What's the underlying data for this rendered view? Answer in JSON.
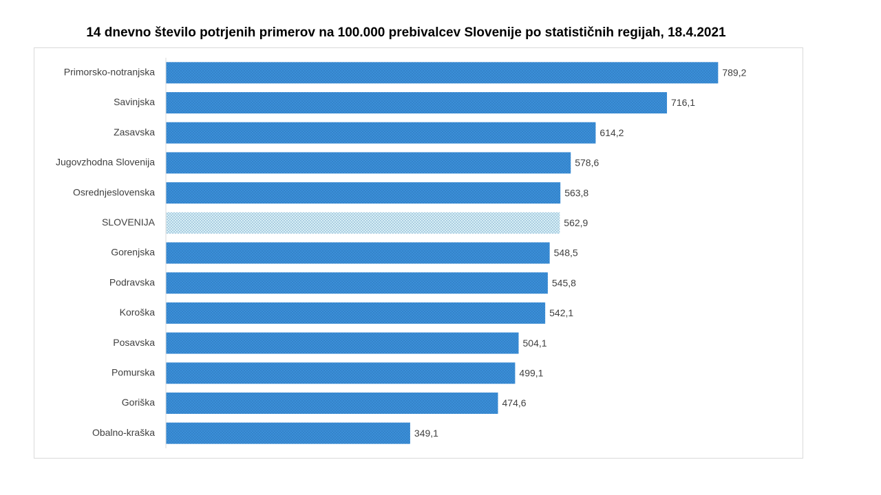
{
  "chart_data": {
    "type": "bar",
    "orientation": "horizontal",
    "title": "14 dnevno število potrjenih primerov na 100.000 prebivalcev Slovenije po statističnih regijah, 18.4.2021",
    "categories": [
      "Primorsko-notranjska",
      "Savinjska",
      "Zasavska",
      "Jugovzhodna Slovenija",
      "Osrednjeslovenska",
      "SLOVENIJA",
      "Gorenjska",
      "Podravska",
      "Koroška",
      "Posavska",
      "Pomurska",
      "Goriška",
      "Obalno-kraška"
    ],
    "values": [
      789.2,
      716.1,
      614.2,
      578.6,
      563.8,
      562.9,
      548.5,
      545.8,
      542.1,
      504.1,
      499.1,
      474.6,
      349.1
    ],
    "value_labels": [
      "789,2",
      "716,1",
      "614,2",
      "578,6",
      "563,8",
      "562,9",
      "548,5",
      "545,8",
      "542,1",
      "504,1",
      "499,1",
      "474,6",
      "349,1"
    ],
    "colors": [
      "#3b8fd8",
      "#3b8fd8",
      "#3b8fd8",
      "#3b8fd8",
      "#3b8fd8",
      "#d8f0f6",
      "#3b8fd8",
      "#3b8fd8",
      "#3b8fd8",
      "#3b8fd8",
      "#3b8fd8",
      "#3b8fd8",
      "#3b8fd8"
    ],
    "xlim": [
      0,
      900
    ]
  }
}
